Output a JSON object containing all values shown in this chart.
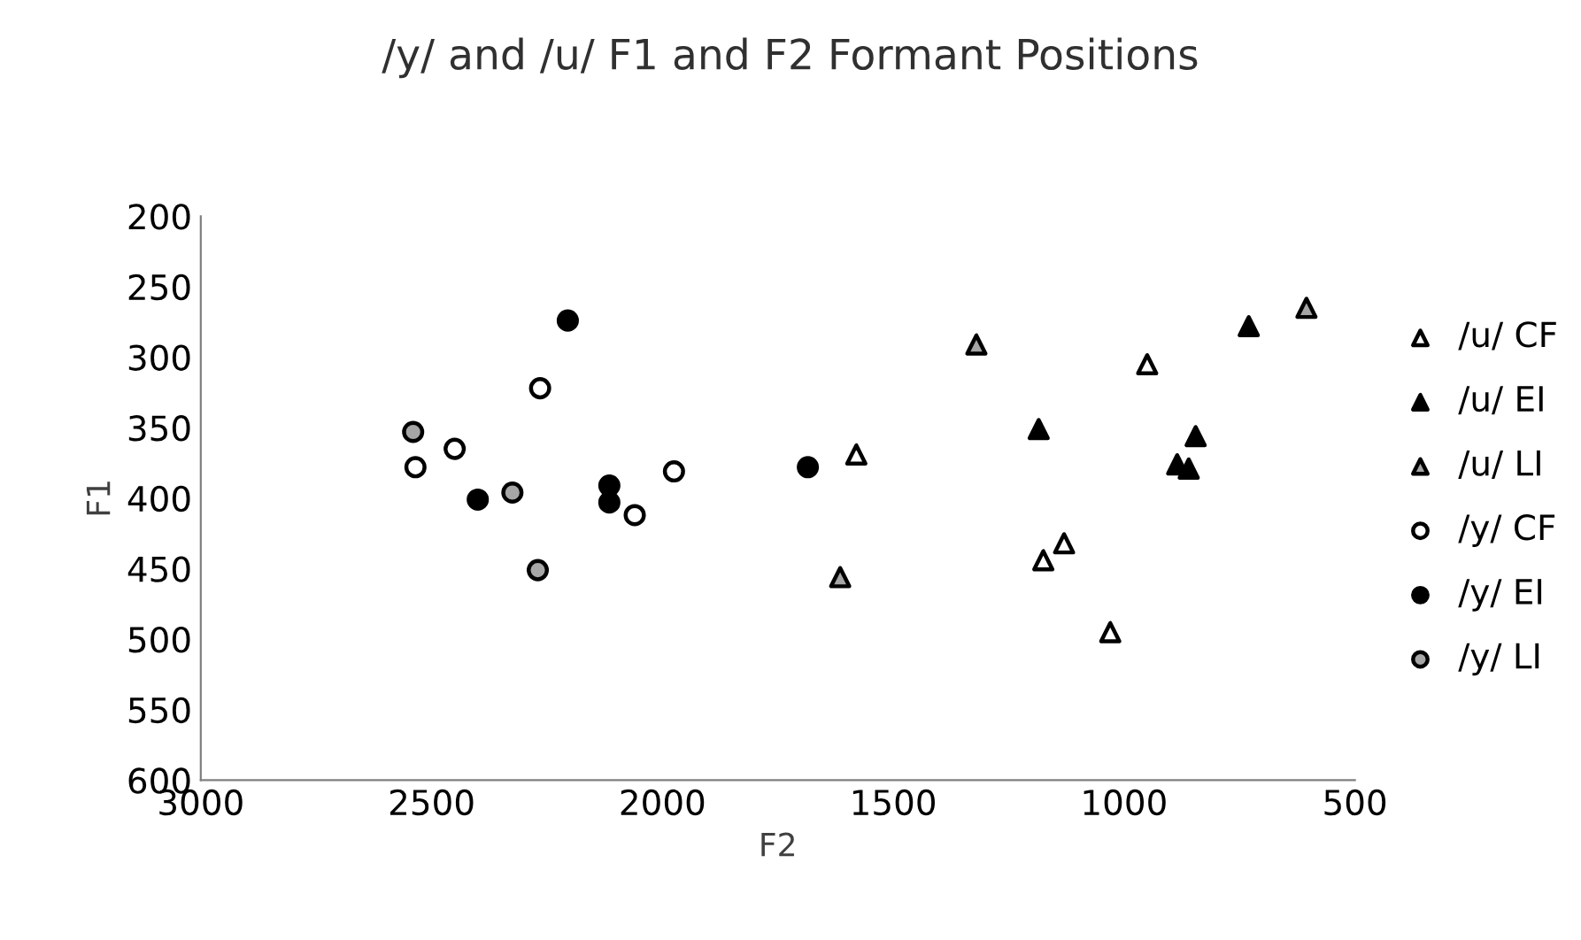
{
  "chart_data": {
    "type": "scatter",
    "title": "/y/ and /u/ F1 and F2 Formant Positions",
    "xlabel": "F2",
    "ylabel": "F1",
    "xlim": [
      3000,
      500
    ],
    "xticks": [
      3000,
      2500,
      2000,
      1500,
      1000,
      500
    ],
    "ylim": [
      600,
      200
    ],
    "yticks": [
      200,
      250,
      300,
      350,
      400,
      450,
      500,
      550,
      600
    ],
    "grid": false,
    "legend": "right",
    "series": [
      {
        "name": "/u/ CF",
        "marker": "triangle",
        "color": "#ffffff",
        "x": [
          1580,
          950,
          1130,
          1175,
          1030
        ],
        "values": [
          369,
          305,
          432,
          444,
          495
        ]
      },
      {
        "name": "/u/ EI",
        "marker": "triangle",
        "color": "#000000",
        "x": [
          730,
          1185,
          845,
          885,
          860
        ],
        "values": [
          278,
          351,
          356,
          376,
          379
        ]
      },
      {
        "name": "/u/ LI",
        "marker": "triangle",
        "color": "#a6a6a6",
        "x": [
          605,
          1320,
          1615
        ],
        "values": [
          265,
          291,
          456
        ]
      },
      {
        "name": "/y/ CF",
        "marker": "circle",
        "color": "#ffffff",
        "x": [
          2265,
          2450,
          2535,
          1975,
          2060
        ],
        "values": [
          322,
          365,
          378,
          381,
          412
        ]
      },
      {
        "name": "/y/ EI",
        "marker": "circle",
        "color": "#000000",
        "x": [
          2205,
          2400,
          2115,
          2115,
          1685
        ],
        "values": [
          274,
          401,
          391,
          403,
          378
        ]
      },
      {
        "name": "/y/ LI",
        "marker": "circle",
        "color": "#a6a6a6",
        "x": [
          2540,
          2325,
          2270
        ],
        "values": [
          353,
          396,
          451
        ]
      }
    ]
  }
}
